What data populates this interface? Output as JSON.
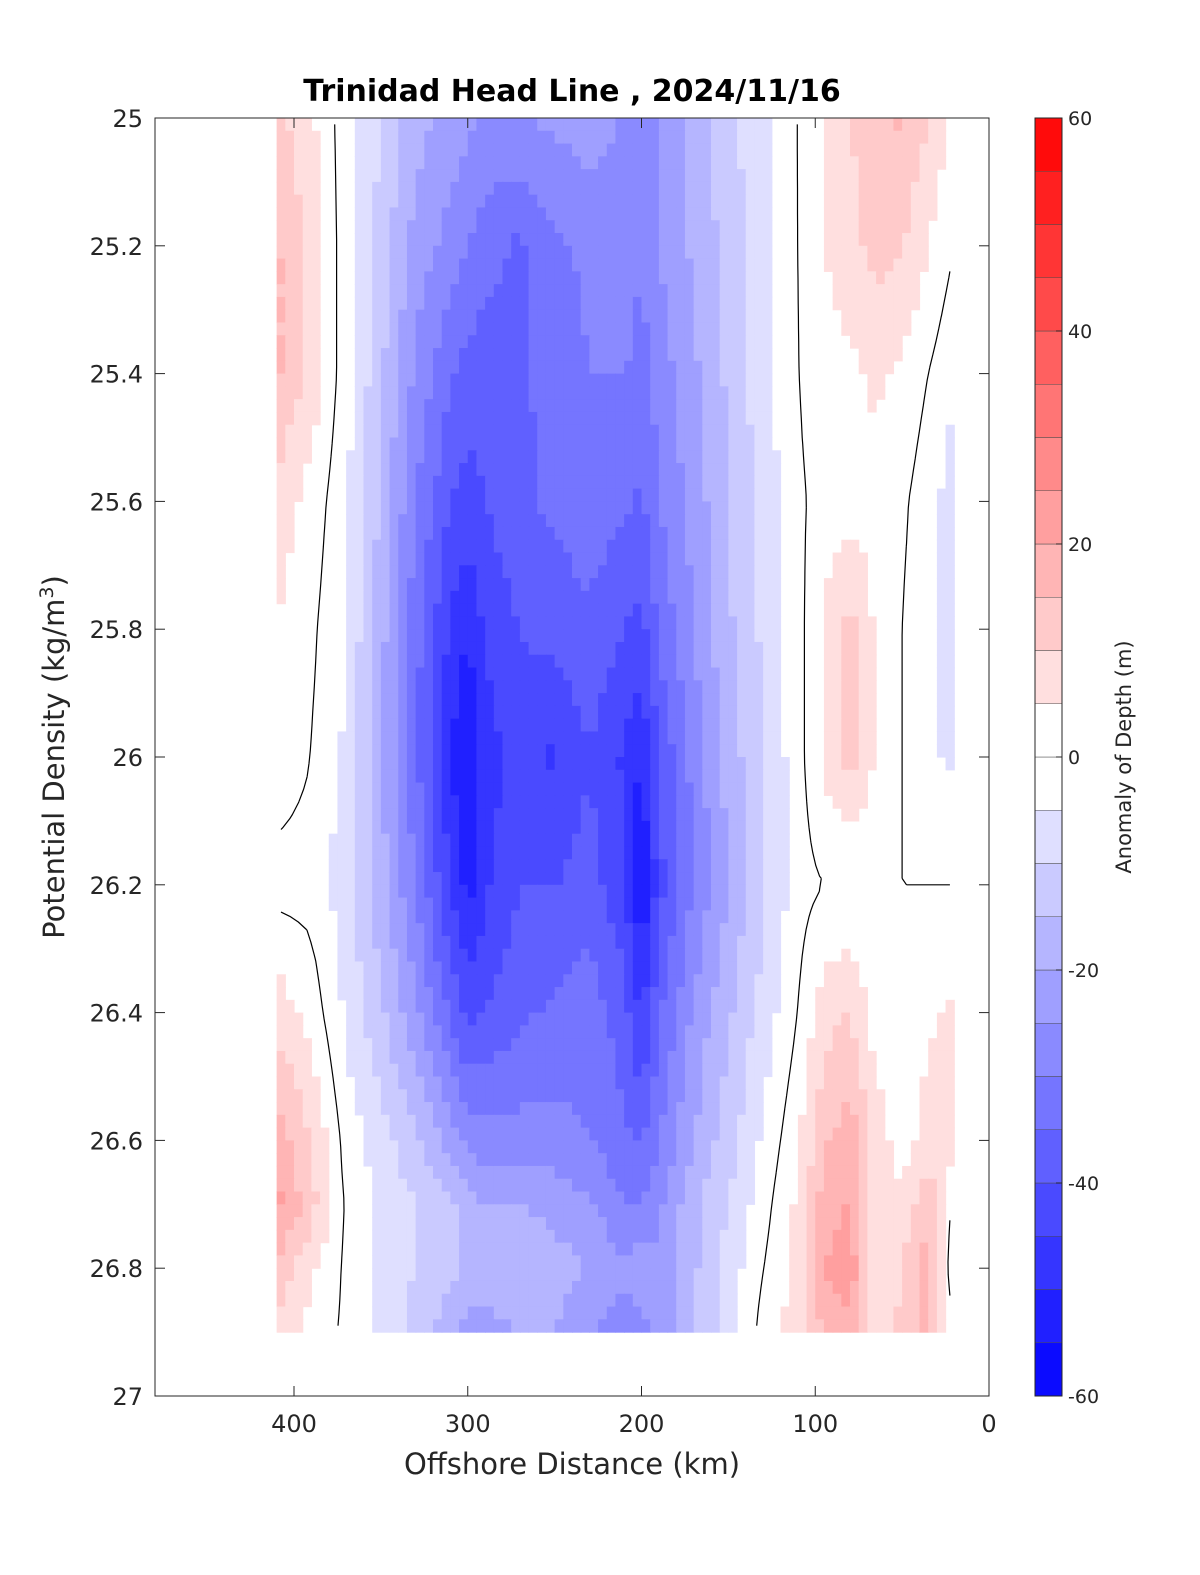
{
  "chart_data": {
    "type": "heatmap",
    "subtype": "filled-contour",
    "title": "Trinidad Head Line , 2024/11/16",
    "xlabel": "Offshore Distance (km)",
    "ylabel": "Potential Density (kg/m",
    "ylabel_sup": "3",
    "ylabel_close": ")",
    "xlim": [
      480,
      0
    ],
    "x_reversed": true,
    "ylim": [
      25,
      27
    ],
    "y_reversed": true,
    "x_ticks": [
      400,
      300,
      200,
      100,
      0
    ],
    "y_ticks": [
      "25",
      "25.2",
      "25.4",
      "25.6",
      "25.8",
      "26",
      "26.2",
      "26.4",
      "26.6",
      "26.8",
      "27"
    ],
    "colorbar": {
      "label": "Anomaly of Depth (m)",
      "range": [
        -60,
        60
      ],
      "step": 5,
      "ticks": [
        "60",
        "40",
        "20",
        "0",
        "-20",
        "-40",
        "-60"
      ],
      "colors": {
        "negative": "#0000ff",
        "zero": "#ffffff",
        "positive": "#ff0000"
      }
    },
    "data_extent": {
      "x": [
        410,
        20
      ],
      "y": [
        25,
        26.9
      ]
    },
    "grid": false,
    "contour_overlay": "zero-line (black)",
    "field": {
      "description": "Anomaly of depth (m) sampled on offshore distance (km) x potential density grid",
      "x": [
        410,
        390,
        370,
        350,
        330,
        310,
        300,
        290,
        270,
        250,
        230,
        210,
        200,
        190,
        170,
        150,
        130,
        110,
        95,
        80,
        65,
        50,
        35,
        20
      ],
      "y": [
        25.0,
        25.2,
        25.4,
        25.6,
        25.8,
        26.0,
        26.2,
        26.4,
        26.6,
        26.7,
        26.8,
        26.9
      ],
      "values": [
        [
          12,
          6,
          -3,
          -10,
          -18,
          -22,
          -24,
          -25,
          -25,
          -24,
          -22,
          -26,
          -30,
          -24,
          -18,
          -12,
          -6,
          0,
          6,
          10,
          14,
          16,
          10,
          4
        ],
        [
          16,
          8,
          -3,
          -12,
          -22,
          -27,
          -30,
          -33,
          -36,
          -31,
          -29,
          -26,
          -30,
          -25,
          -19,
          -13,
          -6,
          0,
          5,
          8,
          12,
          10,
          5,
          0
        ],
        [
          16,
          8,
          -3,
          -14,
          -26,
          -34,
          -37,
          -38,
          -36,
          -33,
          -30,
          -30,
          -32,
          -28,
          -21,
          -14,
          -7,
          0,
          3,
          4,
          6,
          4,
          0,
          -4
        ],
        [
          8,
          3,
          -4,
          -16,
          -30,
          -40,
          -42,
          -40,
          -36,
          -34,
          -32,
          -34,
          -36,
          -30,
          -23,
          -15,
          -8,
          -1,
          2,
          3,
          3,
          1,
          -3,
          -8
        ],
        [
          5,
          1,
          -5,
          -18,
          -33,
          -46,
          -50,
          -44,
          -40,
          -38,
          -36,
          -40,
          -42,
          -34,
          -25,
          -16,
          -9,
          -2,
          6,
          12,
          4,
          0,
          -4,
          -8
        ],
        [
          3,
          0,
          -6,
          -19,
          -34,
          -50,
          -55,
          -48,
          -42,
          -46,
          -40,
          -46,
          -50,
          -40,
          -28,
          -18,
          -10,
          -2,
          6,
          12,
          4,
          0,
          -4,
          -6
        ],
        [
          -2,
          -2,
          -8,
          -18,
          -30,
          -45,
          -52,
          -46,
          -40,
          -40,
          -38,
          -44,
          -56,
          -42,
          -30,
          -20,
          -11,
          -2,
          0,
          0,
          0,
          0,
          0,
          0
        ],
        [
          8,
          3,
          -6,
          -14,
          -24,
          -36,
          -42,
          -40,
          -36,
          -34,
          -32,
          -38,
          -46,
          -36,
          -24,
          -16,
          -8,
          0,
          8,
          10,
          2,
          0,
          4,
          6
        ],
        [
          18,
          10,
          -2,
          -8,
          -14,
          -22,
          -26,
          -28,
          -28,
          -28,
          -30,
          -34,
          -36,
          -30,
          -20,
          -12,
          -4,
          4,
          14,
          18,
          8,
          2,
          8,
          8
        ],
        [
          22,
          12,
          -1,
          -6,
          -10,
          -14,
          -18,
          -20,
          -20,
          -22,
          -24,
          -30,
          -30,
          -26,
          -16,
          -10,
          -2,
          6,
          18,
          20,
          6,
          6,
          14,
          -2
        ],
        [
          14,
          6,
          -1,
          -6,
          -10,
          -14,
          -16,
          -18,
          -14,
          -18,
          -20,
          -24,
          -22,
          -24,
          -16,
          -8,
          0,
          6,
          20,
          24,
          6,
          10,
          18,
          -6
        ],
        [
          8,
          3,
          -1,
          -6,
          -12,
          -18,
          -22,
          -22,
          -20,
          -20,
          -24,
          -28,
          -26,
          -24,
          -16,
          -8,
          2,
          8,
          16,
          18,
          4,
          12,
          16,
          0
        ]
      ]
    }
  }
}
